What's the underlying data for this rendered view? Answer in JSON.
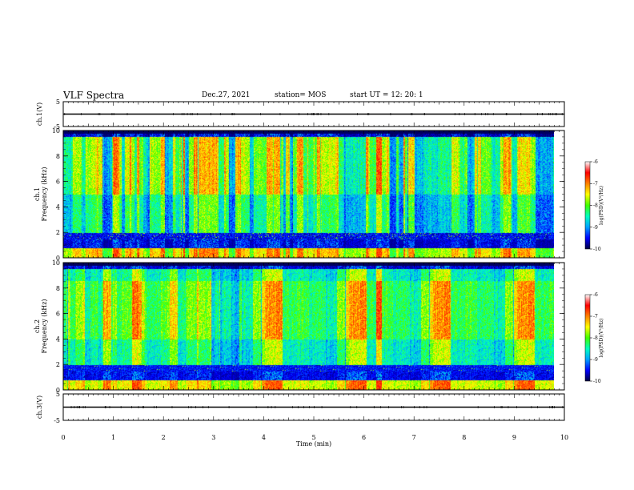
{
  "header": {
    "title": "VLF Spectra",
    "date": "Dec.27, 2021",
    "station": "station= MOS",
    "start": "start  UT =   12: 20: 1"
  },
  "colors": {
    "colormap": [
      "#000040",
      "#0000ff",
      "#00a0ff",
      "#00ffc0",
      "#40ff00",
      "#ffff00",
      "#ff8000",
      "#ff0000",
      "#ffffff"
    ],
    "trace": "#000000"
  },
  "chart_data": [
    {
      "type": "line",
      "panel": "ch1-waveform",
      "ylabel": "ch.1(V)",
      "ylim": [
        -5,
        5
      ],
      "yticks": [
        "5",
        "-5"
      ],
      "x": [
        0,
        10
      ],
      "series": [
        {
          "values": [
            0,
            0
          ]
        }
      ]
    },
    {
      "type": "heatmap",
      "panel": "ch1-spectrogram",
      "ylabel": "ch.1\nFrequency (kHz)",
      "ylim": [
        0,
        10
      ],
      "yticks": [
        "0",
        "2",
        "4",
        "6",
        "8",
        "10"
      ],
      "xlim": [
        0,
        10
      ],
      "data_extent_min": [
        0,
        9.8
      ],
      "colorbar": {
        "label": "log(PSD)(V²/Hz)",
        "range": [
          -10,
          -6
        ],
        "ticks": [
          "-6",
          "-7",
          "-8",
          "-9",
          "-10"
        ]
      },
      "features": {
        "bright_event_min": 6.3,
        "noise_floor_khz": [
          1.5,
          2
        ]
      }
    },
    {
      "type": "heatmap",
      "panel": "ch2-spectrogram",
      "ylabel": "ch.2\nFrequency (kHz)",
      "ylim": [
        0,
        10
      ],
      "yticks": [
        "0",
        "2",
        "4",
        "6",
        "8",
        "10"
      ],
      "xlim": [
        0,
        10
      ],
      "data_extent_min": [
        0,
        9.8
      ],
      "colorbar": {
        "label": "log(PSD)(V²/Hz)",
        "range": [
          -10,
          -6
        ],
        "ticks": [
          "-6",
          "-7",
          "-8",
          "-9",
          "-10"
        ]
      },
      "features": {
        "bright_event_min": 6.3,
        "noise_floor_khz": [
          1.5,
          2
        ]
      }
    },
    {
      "type": "line",
      "panel": "ch3-waveform",
      "ylabel": "ch.3(V)",
      "ylim": [
        -5,
        5
      ],
      "yticks": [
        "5",
        "-5"
      ],
      "x": [
        0,
        10
      ],
      "series": [
        {
          "values": [
            0,
            0
          ]
        }
      ]
    }
  ],
  "xaxis": {
    "label": "Time  (min)",
    "ticks": [
      "0",
      "1",
      "2",
      "3",
      "4",
      "5",
      "6",
      "7",
      "8",
      "9",
      "10"
    ],
    "range": [
      0,
      10
    ]
  }
}
